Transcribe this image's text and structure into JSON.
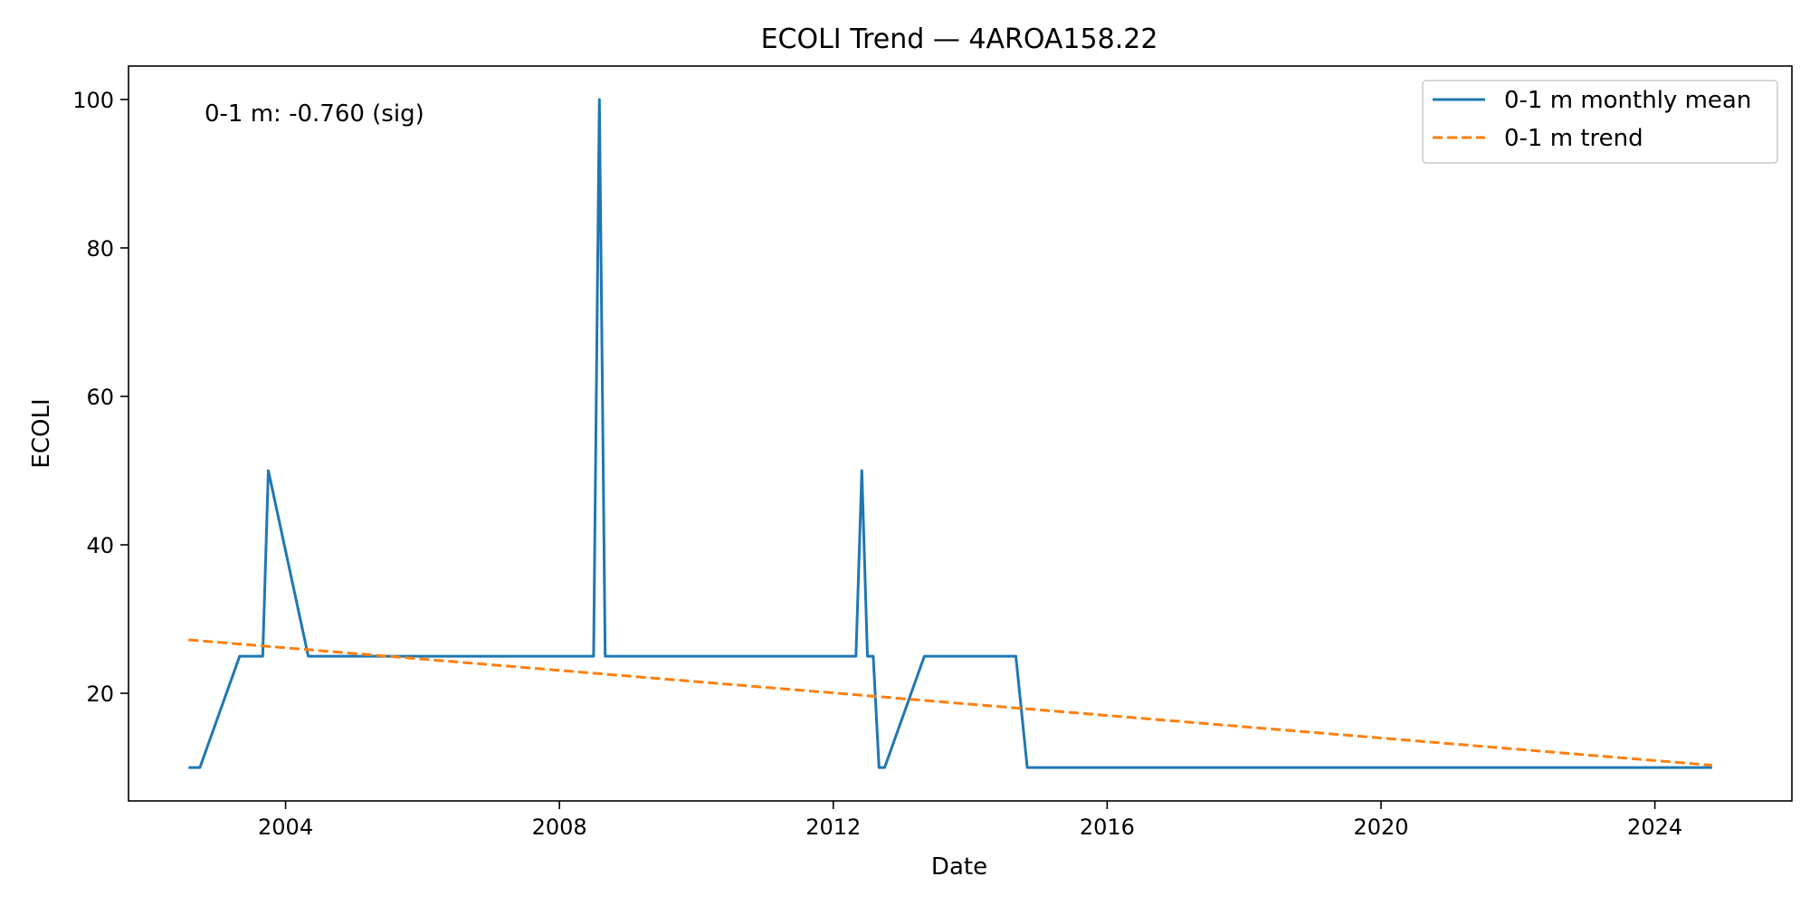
{
  "chart_data": {
    "type": "line",
    "title": "ECOLI Trend — 4AROA158.22",
    "xlabel": "Date",
    "ylabel": "ECOLI",
    "xlim": [
      "2001-09-15",
      "2026-01-01"
    ],
    "ylim": [
      5.5,
      104.5
    ],
    "x_ticks": [
      {
        "date": "2004-01-01",
        "label": "2004"
      },
      {
        "date": "2008-01-01",
        "label": "2008"
      },
      {
        "date": "2012-01-01",
        "label": "2012"
      },
      {
        "date": "2016-01-01",
        "label": "2016"
      },
      {
        "date": "2020-01-01",
        "label": "2020"
      },
      {
        "date": "2024-01-01",
        "label": "2024"
      }
    ],
    "y_ticks": [
      {
        "value": 20,
        "label": "20"
      },
      {
        "value": 40,
        "label": "40"
      },
      {
        "value": 60,
        "label": "60"
      },
      {
        "value": 80,
        "label": "80"
      },
      {
        "value": 100,
        "label": "100"
      }
    ],
    "grid": false,
    "legend_position": "top-right",
    "annotation": "0-1 m: -0.760 (sig)",
    "series": [
      {
        "name": "0-1 m monthly mean",
        "style": "solid",
        "color": "#1f77b4",
        "points": [
          [
            "2002-08-01",
            10
          ],
          [
            "2002-10-01",
            10
          ],
          [
            "2003-05-01",
            25
          ],
          [
            "2003-09-01",
            25
          ],
          [
            "2003-10-01",
            50
          ],
          [
            "2004-05-01",
            25
          ],
          [
            "2008-07-01",
            25
          ],
          [
            "2008-08-01",
            100
          ],
          [
            "2008-09-01",
            25
          ],
          [
            "2012-05-01",
            25
          ],
          [
            "2012-06-01",
            50
          ],
          [
            "2012-07-01",
            25
          ],
          [
            "2012-08-01",
            25
          ],
          [
            "2012-09-01",
            10
          ],
          [
            "2012-10-01",
            10
          ],
          [
            "2013-05-01",
            25
          ],
          [
            "2014-09-01",
            25
          ],
          [
            "2014-11-01",
            10
          ],
          [
            "2024-11-01",
            10
          ]
        ]
      },
      {
        "name": "0-1 m trend",
        "style": "dashed",
        "color": "#ff7f0e",
        "points": [
          [
            "2002-08-01",
            27.2
          ],
          [
            "2024-11-01",
            10.3
          ]
        ]
      }
    ]
  }
}
